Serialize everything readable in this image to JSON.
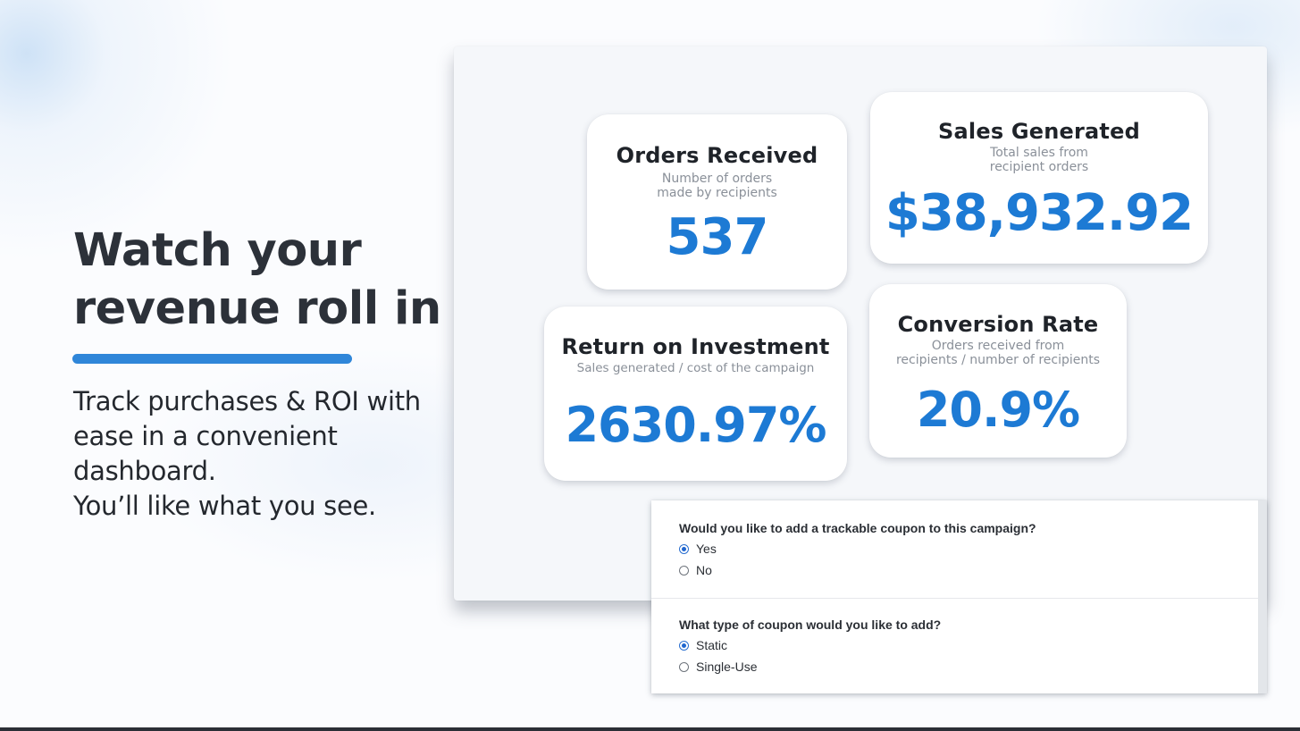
{
  "hero": {
    "headline_line1": "Watch your",
    "headline_line2": "revenue roll in",
    "subtext_line1": "Track purchases & ROI with",
    "subtext_line2": "ease in a convenient",
    "subtext_line3": "dashboard.",
    "subtext_line4": "You’ll like what you see.",
    "accent_color": "#2f86d9"
  },
  "metrics": {
    "orders": {
      "title": "Orders Received",
      "desc_line1": "Number of orders",
      "desc_line2": "made by recipients",
      "value": "537"
    },
    "sales": {
      "title": "Sales Generated",
      "desc_line1": "Total sales from",
      "desc_line2": "recipient orders",
      "value": "$38,932.92"
    },
    "roi": {
      "title": "Return on Investment",
      "desc_line1": "Sales generated / cost of the campaign",
      "value": "2630.97%"
    },
    "conversion": {
      "title": "Conversion Rate",
      "desc_line1": "Orders received from",
      "desc_line2": "recipients / number of recipients",
      "value": "20.9%"
    },
    "value_color": "#1d7ad4"
  },
  "form": {
    "coupon_question": "Would you like to add a trackable coupon to this campaign?",
    "coupon_options": [
      {
        "label": "Yes",
        "selected": true
      },
      {
        "label": "No",
        "selected": false
      }
    ],
    "type_question": "What type of coupon would you like to add?",
    "type_options": [
      {
        "label": "Static",
        "selected": true
      },
      {
        "label": "Single-Use",
        "selected": false
      }
    ]
  }
}
